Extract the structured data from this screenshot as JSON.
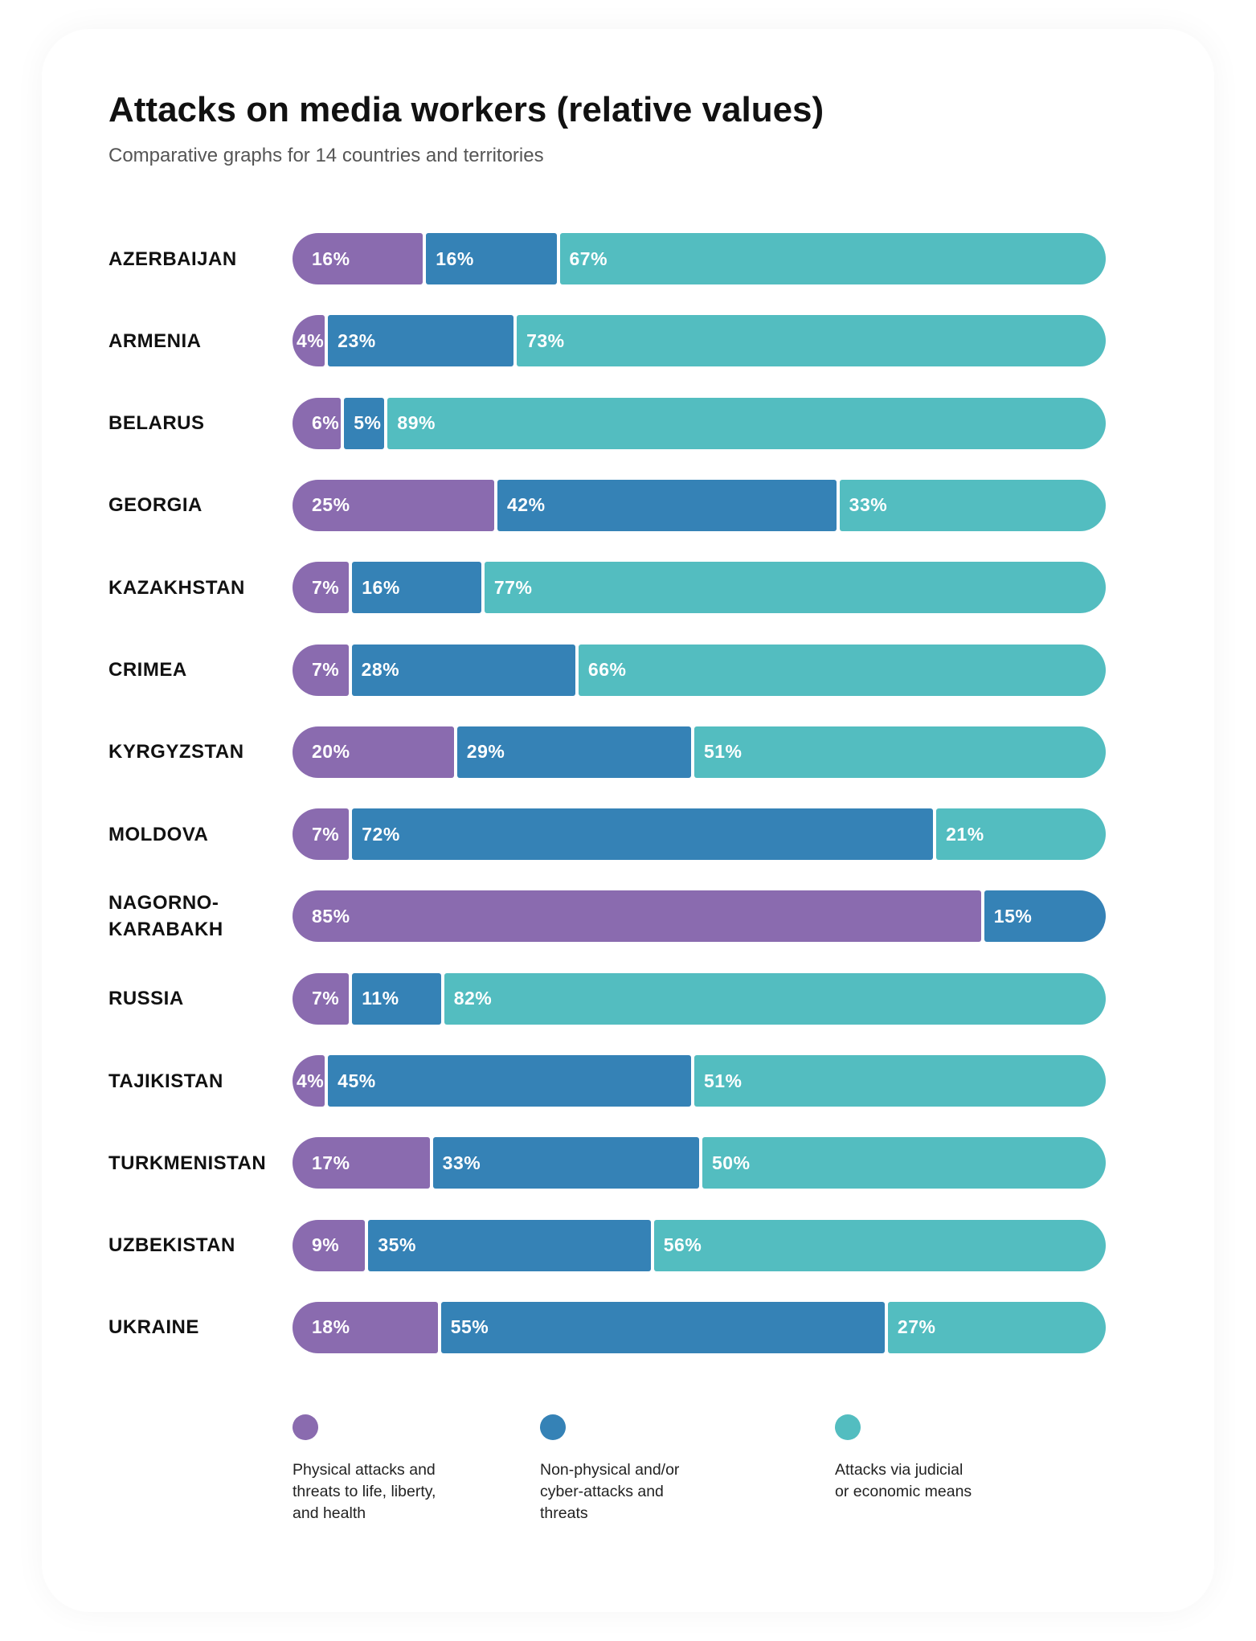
{
  "title": "Attacks on media workers (relative values)",
  "subtitle": "Comparative graphs for 14 countries and territories",
  "colors": {
    "physical": "#8A6BAF",
    "non_physical": "#3582B6",
    "judicial": "#53BDC0"
  },
  "legend": [
    {
      "key": "physical",
      "label": "Physical attacks and\nthreats to life, liberty,\nand health"
    },
    {
      "key": "non_physical",
      "label": "Non-physical and/or\ncyber-attacks and\nthreats"
    },
    {
      "key": "judicial",
      "label": "Attacks via judicial\nor economic means"
    }
  ],
  "chart_data": {
    "type": "bar",
    "stacked": true,
    "orientation": "horizontal",
    "normalized": true,
    "title": "Attacks on media workers (relative values)",
    "subtitle": "Comparative graphs for 14 countries and territories",
    "categories": [
      "AZERBAIJAN",
      "ARMENIA",
      "BELARUS",
      "GEORGIA",
      "KAZAKHSTAN",
      "CRIMEA",
      "KYRGYZSTAN",
      "MOLDOVA",
      "NAGORNO-\nKARABAKH",
      "RUSSIA",
      "TAJIKISTAN",
      "TURKMENISTAN",
      "UZBEKISTAN",
      "UKRAINE"
    ],
    "series": [
      {
        "name": "Physical attacks and threats to life, liberty, and health",
        "key": "physical",
        "values": [
          16,
          4,
          6,
          25,
          7,
          7,
          20,
          7,
          85,
          7,
          4,
          17,
          9,
          18
        ]
      },
      {
        "name": "Non-physical and/or cyber-attacks and threats",
        "key": "non_physical",
        "values": [
          16,
          23,
          5,
          42,
          16,
          28,
          29,
          72,
          15,
          11,
          45,
          33,
          35,
          55
        ]
      },
      {
        "name": "Attacks via judicial or economic means",
        "key": "judicial",
        "values": [
          67,
          73,
          89,
          33,
          77,
          66,
          51,
          21,
          null,
          82,
          51,
          50,
          56,
          27
        ]
      }
    ],
    "value_suffix": "%",
    "legend_position": "bottom",
    "grid": false
  }
}
